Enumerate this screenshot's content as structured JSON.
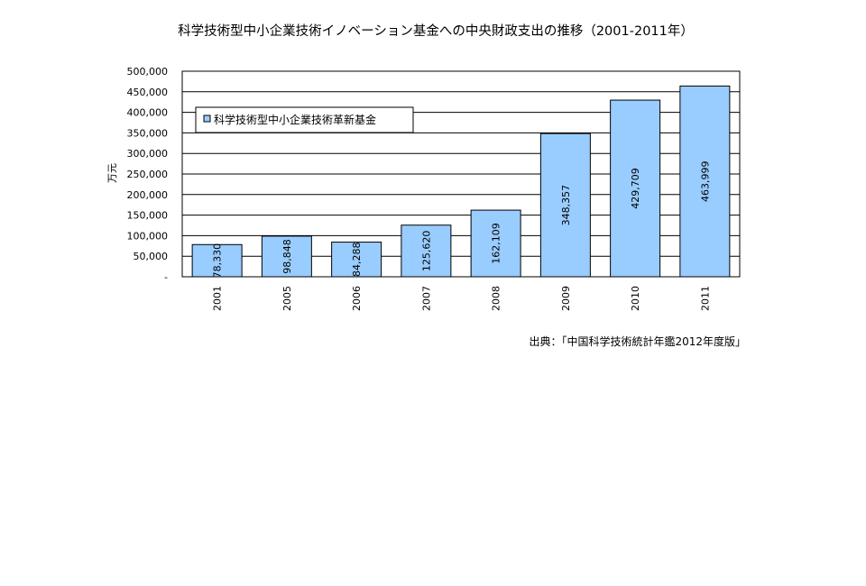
{
  "chart_data": {
    "type": "bar",
    "title": "科学技術型中小企業技術イノベーション基金への中央財政支出の推移（2001-2011年）",
    "ylabel": "万元",
    "xlabel": "",
    "categories": [
      "2001",
      "2005",
      "2006",
      "2007",
      "2008",
      "2009",
      "2010",
      "2011"
    ],
    "series": [
      {
        "name": "科学技術型中小企業技術革新基金",
        "values": [
          78330,
          98848,
          84288,
          125620,
          162109,
          348357,
          429709,
          463999
        ],
        "data_labels": [
          "78,330",
          "98,848",
          "84,288",
          "125,620",
          "162,109",
          "348,357",
          "429,709",
          "463,999"
        ]
      }
    ],
    "ylim": [
      0,
      500000
    ],
    "yticks": [
      0,
      50000,
      100000,
      150000,
      200000,
      250000,
      300000,
      350000,
      400000,
      450000,
      500000
    ],
    "ytick_labels": [
      "-",
      "50,000",
      "100,000",
      "150,000",
      "200,000",
      "250,000",
      "300,000",
      "350,000",
      "400,000",
      "450,000",
      "500,000"
    ],
    "grid": true,
    "legend_position": "top-left",
    "bar_color": "#99ccff",
    "source": "出典：「中国科学技術統計年鑑2012年度版」"
  }
}
